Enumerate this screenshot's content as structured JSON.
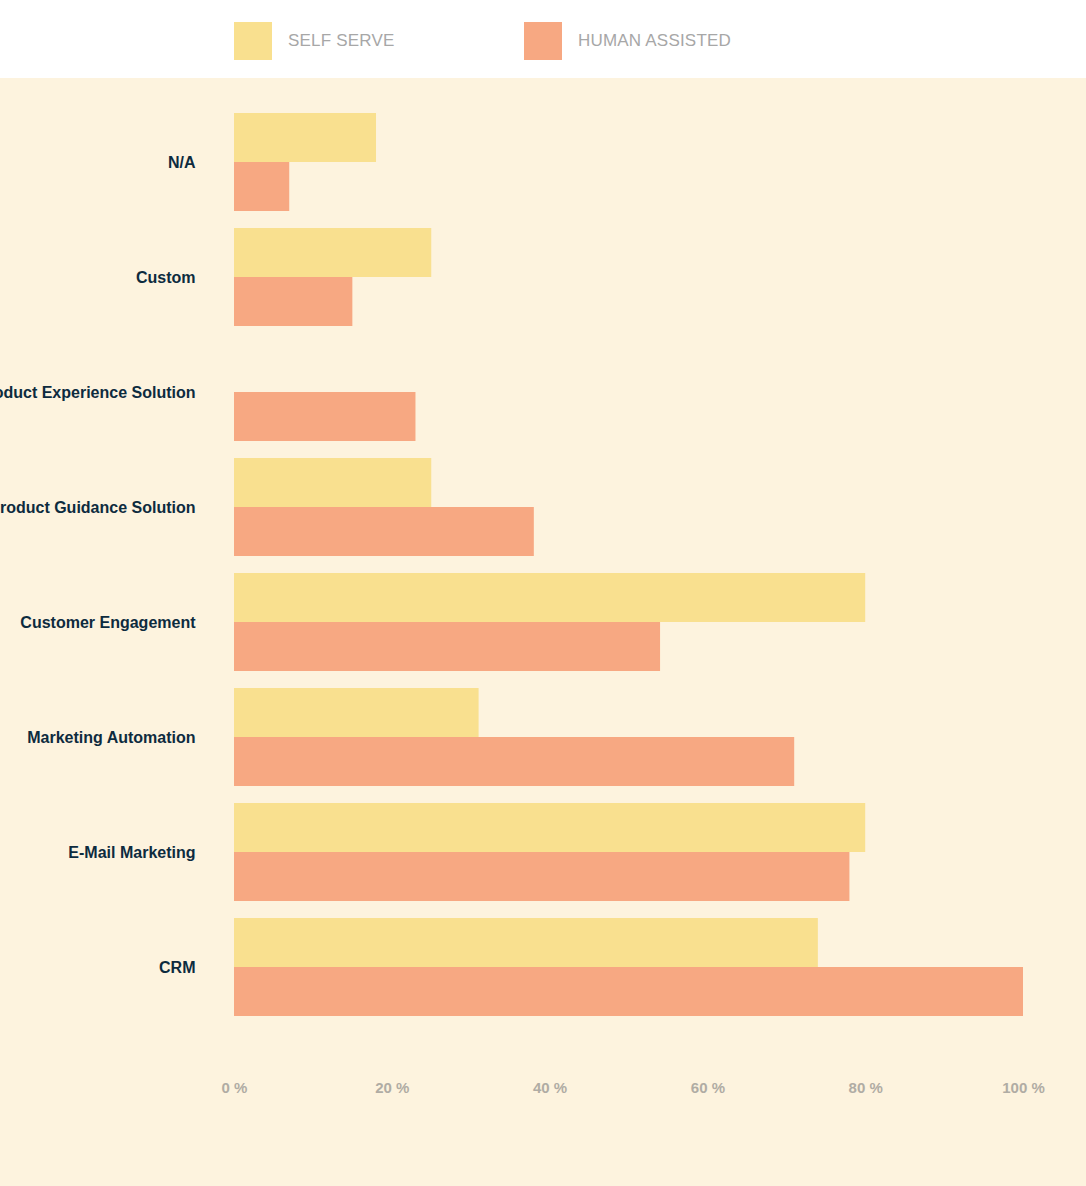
{
  "chart_data": {
    "type": "bar",
    "orientation": "horizontal",
    "categories": [
      "N/A",
      "Custom",
      "Product Experience Solution",
      "Product Guidance Solution",
      "Customer Engagement",
      "Marketing Automation",
      "E-Mail Marketing",
      "CRM"
    ],
    "series": [
      {
        "name": "SELF SERVE",
        "color": "#f9e08f",
        "values": [
          18,
          25,
          0,
          25,
          80,
          31,
          80,
          74
        ]
      },
      {
        "name": "HUMAN ASSISTED",
        "color": "#f7a882",
        "values": [
          7,
          15,
          23,
          38,
          54,
          71,
          78,
          100
        ]
      }
    ],
    "xlim": [
      0,
      100
    ],
    "xticks": [
      {
        "value": 0,
        "label": "0 %"
      },
      {
        "value": 20,
        "label": "20 %"
      },
      {
        "value": 40,
        "label": "40 %"
      },
      {
        "value": 60,
        "label": "60 %"
      },
      {
        "value": 80,
        "label": "80 %"
      },
      {
        "value": 100,
        "label": "100 %"
      }
    ],
    "legend": "top",
    "grid": false
  }
}
